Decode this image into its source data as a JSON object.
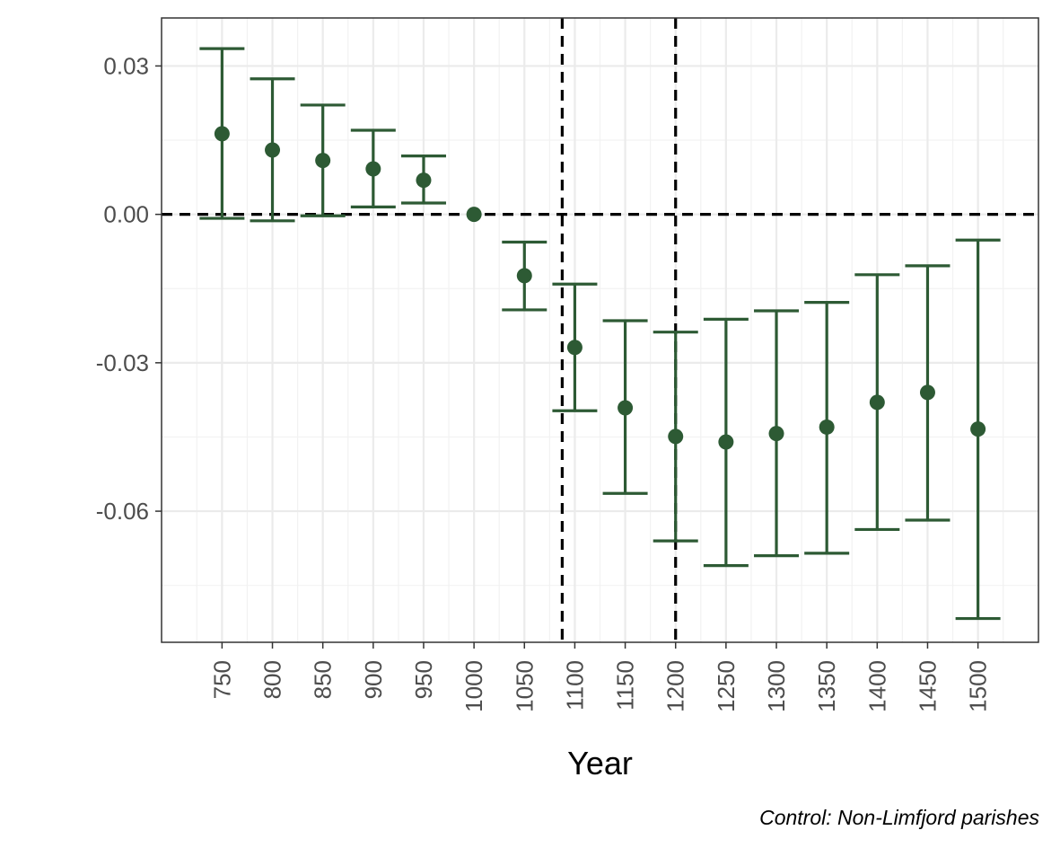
{
  "chart_data": {
    "type": "scatter",
    "subtype": "coefficient plot with 95% error bars",
    "title": "",
    "xlabel": "Year",
    "ylabel": "",
    "caption": "Control: Non-Limfjord parishes",
    "x_ticks": [
      "750",
      "800",
      "850",
      "900",
      "950",
      "1000",
      "1050",
      "1100",
      "1150",
      "1200",
      "1250",
      "1300",
      "1350",
      "1400",
      "1450",
      "1500"
    ],
    "y_ticks": [
      "0.03",
      "0.00",
      "-0.03",
      "-0.06"
    ],
    "y_tick_values": [
      0.03,
      0.0,
      -0.03,
      -0.06
    ],
    "xlim": [
      690,
      1560
    ],
    "ylim": [
      -0.0865,
      0.0397
    ],
    "grid": true,
    "legend": "none",
    "point_color": "#2d5a34",
    "reference_color": "#000000",
    "reference_lines": {
      "horizontal_y": 0,
      "vertical_x": [
        1087.5,
        1200
      ]
    },
    "points": [
      {
        "x": 750,
        "y": 0.0163,
        "ci_low": -0.0008,
        "ci_high": 0.0335
      },
      {
        "x": 800,
        "y": 0.013,
        "ci_low": -0.0013,
        "ci_high": 0.0274
      },
      {
        "x": 850,
        "y": 0.0109,
        "ci_low": -0.0003,
        "ci_high": 0.0221
      },
      {
        "x": 900,
        "y": 0.0092,
        "ci_low": 0.0015,
        "ci_high": 0.017
      },
      {
        "x": 950,
        "y": 0.0069,
        "ci_low": 0.0023,
        "ci_high": 0.0118
      },
      {
        "x": 1000,
        "y": 0.0,
        "ci_low": 0.0,
        "ci_high": 0.0
      },
      {
        "x": 1050,
        "y": -0.0124,
        "ci_low": -0.0193,
        "ci_high": -0.0056
      },
      {
        "x": 1100,
        "y": -0.0269,
        "ci_low": -0.0397,
        "ci_high": -0.0141
      },
      {
        "x": 1150,
        "y": -0.0391,
        "ci_low": -0.0564,
        "ci_high": -0.0215
      },
      {
        "x": 1200,
        "y": -0.0449,
        "ci_low": -0.066,
        "ci_high": -0.0238
      },
      {
        "x": 1250,
        "y": -0.046,
        "ci_low": -0.071,
        "ci_high": -0.0212
      },
      {
        "x": 1300,
        "y": -0.0443,
        "ci_low": -0.069,
        "ci_high": -0.0195
      },
      {
        "x": 1350,
        "y": -0.043,
        "ci_low": -0.0685,
        "ci_high": -0.0178
      },
      {
        "x": 1400,
        "y": -0.038,
        "ci_low": -0.0637,
        "ci_high": -0.0122
      },
      {
        "x": 1450,
        "y": -0.036,
        "ci_low": -0.0618,
        "ci_high": -0.0104
      },
      {
        "x": 1500,
        "y": -0.0434,
        "ci_low": -0.0817,
        "ci_high": -0.0052
      }
    ]
  }
}
